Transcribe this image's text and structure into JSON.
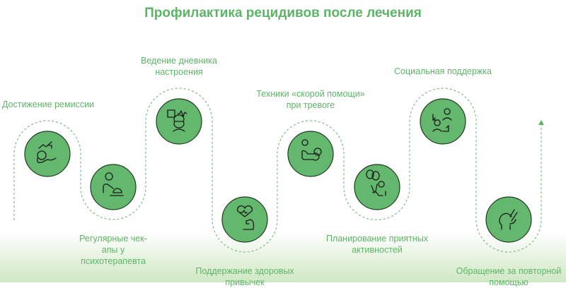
{
  "title": "Профилактика рецидивов после лечения",
  "colors": {
    "accent": "#5cb566",
    "circle": "#63b86e",
    "stroke": "#1f3a22",
    "path": "#8bbd8f"
  },
  "steps": [
    {
      "label": "Достижение ремиссии",
      "icon": "recovery-trend-icon"
    },
    {
      "label": "Регулярные чек-апы у психотерапевта",
      "icon": "therapist-session-icon"
    },
    {
      "label": "Ведение дневника настроения",
      "icon": "mood-diary-icon"
    },
    {
      "label": "Поддержание здоровых привычек",
      "icon": "heart-strength-icon"
    },
    {
      "label": "Техники «скорой помощи» при тревоге",
      "icon": "first-aid-icon"
    },
    {
      "label": "Планирование приятных активностей",
      "icon": "balloons-person-icon"
    },
    {
      "label": "Социальная поддержка",
      "icon": "social-exchange-icon"
    },
    {
      "label": "Обращение за повторной помощью",
      "icon": "helping-hand-icon"
    }
  ]
}
